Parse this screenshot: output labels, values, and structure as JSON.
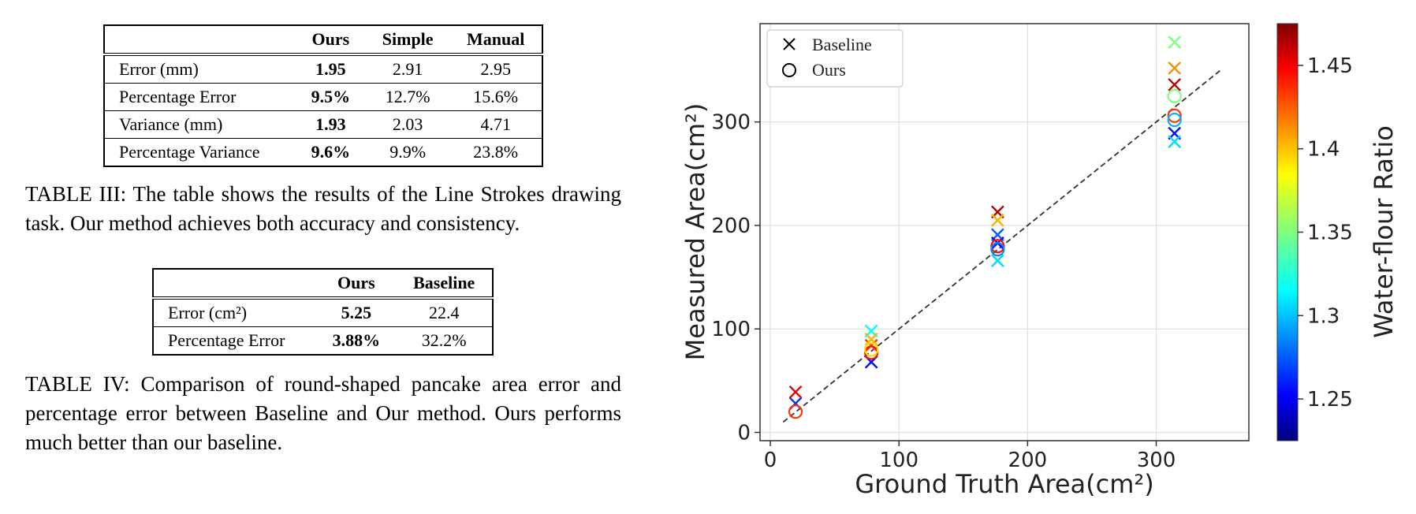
{
  "table3": {
    "headers": [
      "",
      "Ours",
      "Simple",
      "Manual"
    ],
    "rows": [
      {
        "label": "Error (mm)",
        "values": [
          "1.95",
          "2.91",
          "2.95"
        ]
      },
      {
        "label": "Percentage Error",
        "values": [
          "9.5%",
          "12.7%",
          "15.6%"
        ]
      },
      {
        "label": "Variance (mm)",
        "values": [
          "1.93",
          "2.03",
          "4.71"
        ]
      },
      {
        "label": "Percentage Variance",
        "values": [
          "9.6%",
          "9.9%",
          "23.8%"
        ]
      }
    ],
    "caption": "TABLE III: The table shows the results of the Line Strokes drawing task. Our method achieves both accuracy and consistency."
  },
  "table4": {
    "headers": [
      "",
      "Ours",
      "Baseline"
    ],
    "rows": [
      {
        "label": "Error (cm²)",
        "values": [
          "5.25",
          "22.4"
        ]
      },
      {
        "label": "Percentage Error",
        "values": [
          "3.88%",
          "32.2%"
        ]
      }
    ],
    "caption": "TABLE IV: Comparison of round-shaped pancake area error and percentage error between Baseline and Our method. Ours performs much better than our baseline."
  },
  "chart_data": {
    "type": "scatter",
    "xlabel": "Ground Truth Area(cm²)",
    "ylabel": "Measured Area(cm²)",
    "xlim": [
      -8,
      372
    ],
    "ylim": [
      -8,
      395
    ],
    "xticks": [
      0,
      100,
      200,
      300
    ],
    "yticks": [
      0,
      100,
      200,
      300
    ],
    "grid": true,
    "legend_placement": "top-left",
    "legend": [
      {
        "marker": "x",
        "label": "Baseline"
      },
      {
        "marker": "o",
        "label": "Ours"
      }
    ],
    "reference_line": {
      "from": [
        10,
        10
      ],
      "to": [
        350,
        350
      ],
      "style": "dashed"
    },
    "colorbar": {
      "label": "Water-flour Ratio",
      "min": 1.225,
      "max": 1.475,
      "ticks": [
        1.25,
        1.3,
        1.35,
        1.4,
        1.45
      ],
      "tick_labels": [
        "1.25",
        "1.3",
        "1.35",
        "1.4",
        "1.45"
      ]
    },
    "series": [
      {
        "name": "Baseline",
        "marker": "x",
        "points": [
          {
            "x": 19.6,
            "y": 28,
            "c": 1.27
          },
          {
            "x": 19.6,
            "y": 39,
            "c": 1.45
          },
          {
            "x": 78.5,
            "y": 68,
            "c": 1.26
          },
          {
            "x": 78.5,
            "y": 98,
            "c": 1.32
          },
          {
            "x": 78.5,
            "y": 84,
            "c": 1.43
          },
          {
            "x": 78.5,
            "y": 90,
            "c": 1.4
          },
          {
            "x": 176.7,
            "y": 213,
            "c": 1.46
          },
          {
            "x": 176.7,
            "y": 205,
            "c": 1.4
          },
          {
            "x": 176.7,
            "y": 191,
            "c": 1.28
          },
          {
            "x": 176.7,
            "y": 183,
            "c": 1.26
          },
          {
            "x": 176.7,
            "y": 166,
            "c": 1.31
          },
          {
            "x": 314.2,
            "y": 377,
            "c": 1.35
          },
          {
            "x": 314.2,
            "y": 352,
            "c": 1.41
          },
          {
            "x": 314.2,
            "y": 336,
            "c": 1.46
          },
          {
            "x": 314.2,
            "y": 289,
            "c": 1.26
          },
          {
            "x": 314.2,
            "y": 281,
            "c": 1.31
          }
        ]
      },
      {
        "name": "Ours",
        "marker": "o",
        "points": [
          {
            "x": 19.6,
            "y": 20,
            "c": 1.43
          },
          {
            "x": 78.5,
            "y": 77,
            "c": 1.44
          },
          {
            "x": 78.5,
            "y": 80,
            "c": 1.39
          },
          {
            "x": 176.7,
            "y": 180,
            "c": 1.44
          },
          {
            "x": 176.7,
            "y": 177,
            "c": 1.29
          },
          {
            "x": 314.2,
            "y": 325,
            "c": 1.35
          },
          {
            "x": 314.2,
            "y": 306,
            "c": 1.43
          },
          {
            "x": 314.2,
            "y": 302,
            "c": 1.3
          }
        ]
      }
    ]
  }
}
